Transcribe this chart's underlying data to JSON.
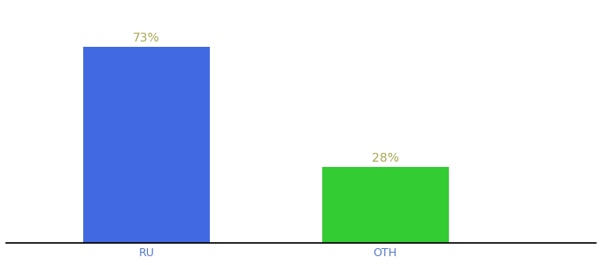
{
  "categories": [
    "RU",
    "OTH"
  ],
  "values": [
    73,
    28
  ],
  "bar_colors": [
    "#4169e1",
    "#33cc33"
  ],
  "label_color": "#aaa855",
  "label_fontsize": 10,
  "tick_label_color": "#5577cc",
  "tick_label_fontsize": 9,
  "background_color": "#ffffff",
  "ylim": [
    0,
    88
  ],
  "bar_width": 0.18,
  "x_positions": [
    0.28,
    0.62
  ],
  "xlim": [
    0.08,
    0.92
  ]
}
